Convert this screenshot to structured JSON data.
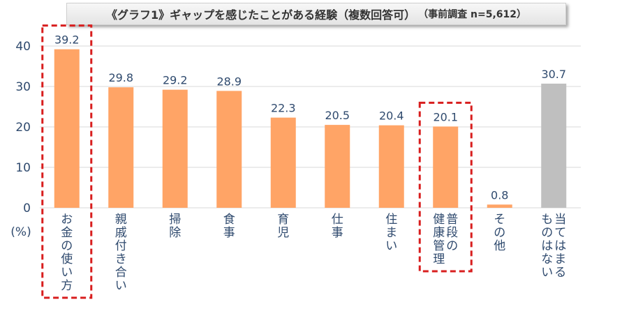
{
  "title": "《グラフ1》ギャップを感じたことがある経験（複数回答可）",
  "subtitle": "（事前調査 n=5,612）",
  "chart_data": {
    "type": "bar",
    "title": "《グラフ1》ギャップを感じたことがある経験（複数回答可）",
    "subtitle": "（事前調査 n=5,612）",
    "ylabel": "(%)",
    "ylim": [
      0,
      40
    ],
    "yticks": [
      0,
      10,
      20,
      30,
      40
    ],
    "grid": true,
    "categories": [
      [
        "お金の使い方"
      ],
      [
        "親戚付き合い"
      ],
      [
        "掃除"
      ],
      [
        "食事"
      ],
      [
        "育児"
      ],
      [
        "仕事"
      ],
      [
        "住まい"
      ],
      [
        "普段の",
        "健康管理"
      ],
      [
        "その他"
      ],
      [
        "当てはまる",
        "ものはない"
      ]
    ],
    "values": [
      39.2,
      29.8,
      29.2,
      28.9,
      22.3,
      20.5,
      20.4,
      20.1,
      0.8,
      30.7
    ],
    "value_labels": [
      "39.2",
      "29.8",
      "29.2",
      "28.9",
      "22.3",
      "20.5",
      "20.4",
      "20.1",
      "0.8",
      "30.7"
    ],
    "bar_colors": [
      "#ffa466",
      "#ffa466",
      "#ffa466",
      "#ffa466",
      "#ffa466",
      "#ffa466",
      "#ffa466",
      "#ffa466",
      "#ffa466",
      "#bfbfbf"
    ],
    "highlighted": [
      0,
      7
    ],
    "highlight_color": "#d81e1e"
  }
}
